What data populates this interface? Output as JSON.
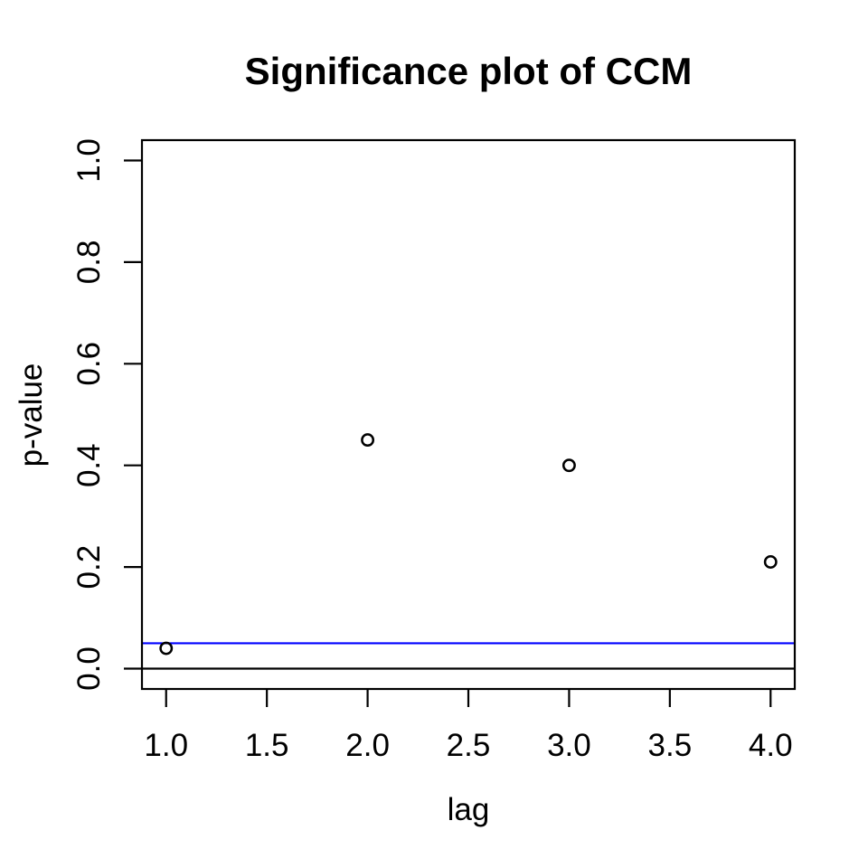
{
  "title": "Significance plot of CCM",
  "colors": {
    "background": "#FFFFFF",
    "foreground": "#000000",
    "threshold_line": "#0000FF"
  },
  "chart_data": {
    "type": "scatter",
    "title": "Significance plot of CCM",
    "xlabel": "lag",
    "ylabel": "p-value",
    "marker": "open-circle",
    "grid": false,
    "legend": "none",
    "xlim": [
      1.0,
      4.0
    ],
    "ylim": [
      0.0,
      1.0
    ],
    "x_ticks": [
      1.0,
      1.5,
      2.0,
      2.5,
      3.0,
      3.5,
      4.0
    ],
    "x_tick_labels": [
      "1.0",
      "1.5",
      "2.0",
      "2.5",
      "3.0",
      "3.5",
      "4.0"
    ],
    "y_ticks": [
      0.0,
      0.2,
      0.4,
      0.6,
      0.8,
      1.0
    ],
    "y_tick_labels": [
      "0.0",
      "0.2",
      "0.4",
      "0.6",
      "0.8",
      "1.0"
    ],
    "points": [
      {
        "x": 1.0,
        "y": 0.04
      },
      {
        "x": 2.0,
        "y": 0.45
      },
      {
        "x": 3.0,
        "y": 0.4
      },
      {
        "x": 4.0,
        "y": 0.21
      }
    ],
    "hlines": [
      {
        "y": 0.0,
        "color": "#000000",
        "name": "zero-line"
      },
      {
        "y": 0.05,
        "color": "#0000FF",
        "name": "significance-threshold-line"
      }
    ]
  }
}
